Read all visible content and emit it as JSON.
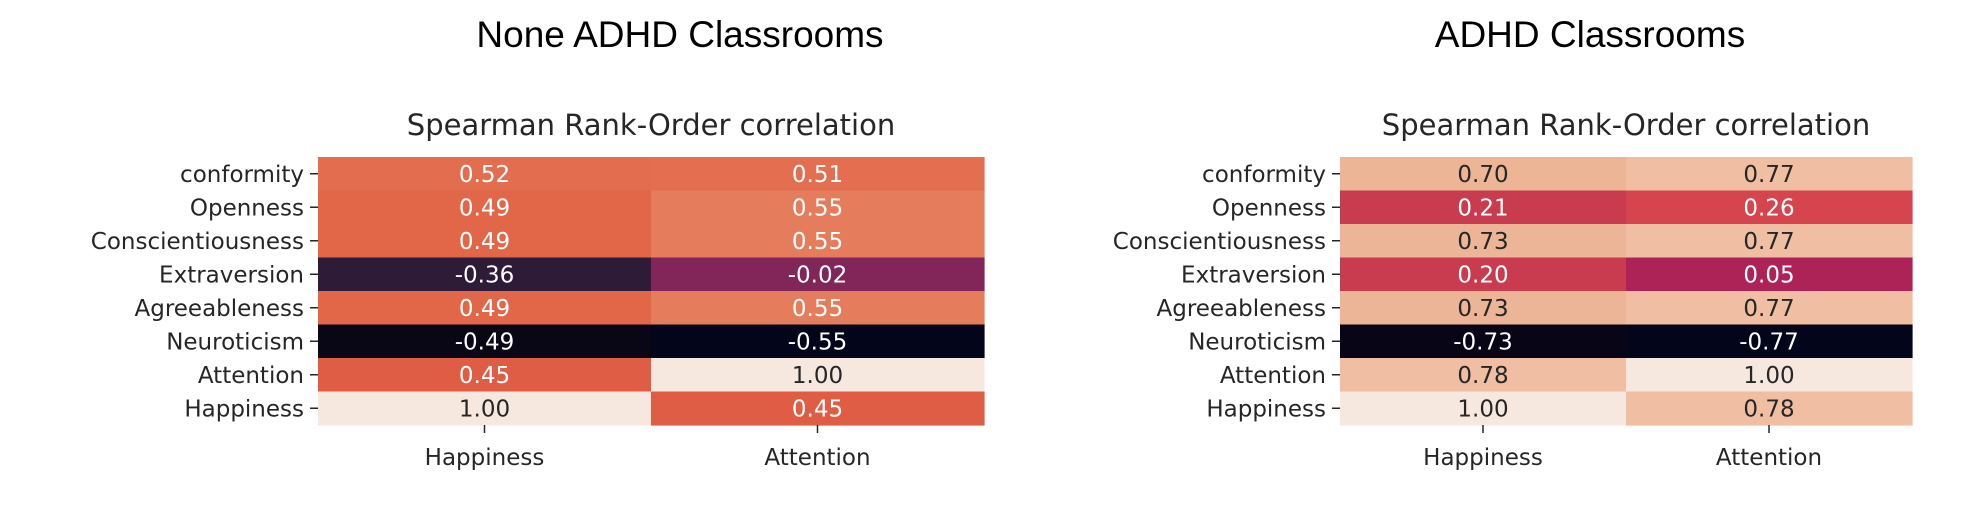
{
  "page": {
    "left_heading": "None ADHD Classrooms",
    "right_heading": "ADHD Classrooms"
  },
  "chart_data": [
    {
      "type": "heatmap",
      "title": "Spearman Rank-Order correlation",
      "rows": [
        "conformity",
        "Openness",
        "Conscientiousness",
        "Extraversion",
        "Agreeableness",
        "Neuroticism",
        "Attention",
        "Happiness"
      ],
      "columns": [
        "Happiness",
        "Attention"
      ],
      "values": [
        [
          0.52,
          0.51
        ],
        [
          0.49,
          0.55
        ],
        [
          0.49,
          0.55
        ],
        [
          -0.36,
          -0.02
        ],
        [
          0.49,
          0.55
        ],
        [
          -0.49,
          -0.55
        ],
        [
          0.45,
          1.0
        ],
        [
          1.0,
          0.45
        ]
      ],
      "value_labels": [
        [
          "0.52",
          "0.51"
        ],
        [
          "0.49",
          "0.55"
        ],
        [
          "0.49",
          "0.55"
        ],
        [
          "-0.36",
          "-0.02"
        ],
        [
          "0.49",
          "0.55"
        ],
        [
          "-0.49",
          "-0.55"
        ],
        [
          "0.45",
          "1.00"
        ],
        [
          "1.00",
          "0.45"
        ]
      ],
      "colors": [
        [
          "#e36d4f",
          "#e36e50"
        ],
        [
          "#e16748",
          "#e57c5b"
        ],
        [
          "#e16748",
          "#e57c5b"
        ],
        [
          "#2d1b38",
          "#822659"
        ],
        [
          "#e16748",
          "#e57c5b"
        ],
        [
          "#090616",
          "#03051a"
        ],
        [
          "#e05d45",
          "#f6e8df"
        ],
        [
          "#f6e8df",
          "#e05d45"
        ]
      ],
      "colormap": "rocket",
      "grid": false,
      "legend": "none"
    },
    {
      "type": "heatmap",
      "title": "Spearman Rank-Order correlation",
      "rows": [
        "conformity",
        "Openness",
        "Conscientiousness",
        "Extraversion",
        "Agreeableness",
        "Neuroticism",
        "Attention",
        "Happiness"
      ],
      "columns": [
        "Happiness",
        "Attention"
      ],
      "values": [
        [
          0.7,
          0.77
        ],
        [
          0.21,
          0.26
        ],
        [
          0.73,
          0.77
        ],
        [
          0.2,
          0.05
        ],
        [
          0.73,
          0.77
        ],
        [
          -0.73,
          -0.77
        ],
        [
          0.78,
          1.0
        ],
        [
          1.0,
          0.78
        ]
      ],
      "value_labels": [
        [
          "0.70",
          "0.77"
        ],
        [
          "0.21",
          "0.26"
        ],
        [
          "0.73",
          "0.77"
        ],
        [
          "0.20",
          "0.05"
        ],
        [
          "0.73",
          "0.77"
        ],
        [
          "-0.73",
          "-0.77"
        ],
        [
          "0.78",
          "1.00"
        ],
        [
          "1.00",
          "0.78"
        ]
      ],
      "colors": [
        [
          "#ecb595",
          "#efbea3"
        ],
        [
          "#c93b4e",
          "#d6444e"
        ],
        [
          "#ecb597",
          "#efbea3"
        ],
        [
          "#c93b4e",
          "#ad2358"
        ],
        [
          "#ecb597",
          "#efbea3"
        ],
        [
          "#080516",
          "#03051a"
        ],
        [
          "#efbea3",
          "#f6e8df"
        ],
        [
          "#f6e8df",
          "#efbea3"
        ]
      ],
      "colormap": "rocket",
      "grid": false,
      "legend": "none"
    }
  ]
}
